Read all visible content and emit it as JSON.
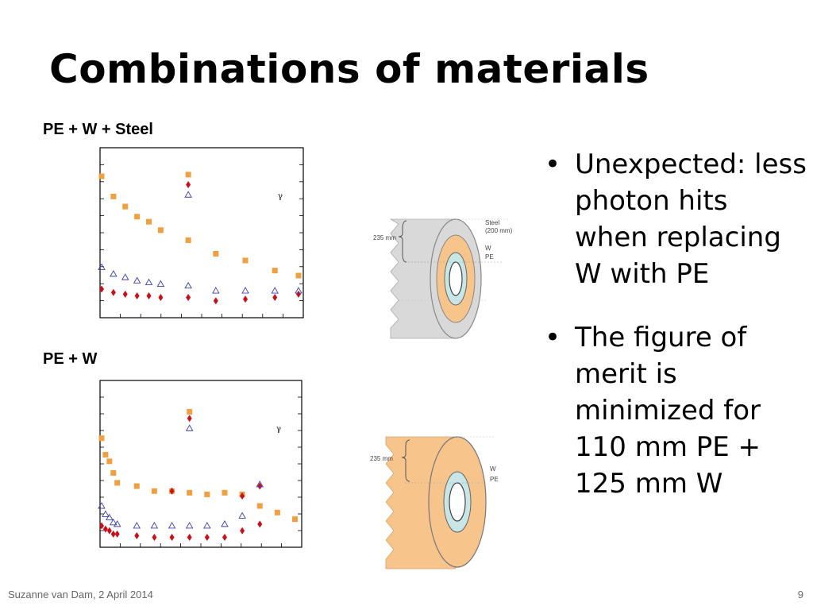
{
  "slide": {
    "title": "Combinations of materials",
    "footer_left": "Suzanne van Dam, 2 April 2014",
    "page_number": "9",
    "bullets": [
      "Unexpected: less photon hits when replacing W with PE",
      "The figure of merit is minimized for 110 mm PE + 125 mm W"
    ],
    "bullet_glyph": "•"
  },
  "diagrams": {
    "top": {
      "dimension": "235 mm",
      "labels": [
        "Steel",
        "(200 mm)",
        "W",
        "PE"
      ]
    },
    "bottom": {
      "dimension": "235 mm",
      "labels": [
        "W",
        "PE"
      ]
    }
  },
  "colors": {
    "orange": "#f0a040",
    "red": "#c8101a",
    "blue": "#3b3fb0",
    "steel": "#d9d9d9",
    "pe": "#f7c48c",
    "w_ring": "#c8e6e6"
  },
  "chart_data": [
    {
      "type": "scatter",
      "title": "PE + W + Steel",
      "annotation": "γ",
      "xlim": [
        0,
        10
      ],
      "ylim": [
        0,
        10
      ],
      "series": [
        {
          "marker": "square",
          "color": "#f0a040",
          "points": [
            [
              0,
              8.4
            ],
            [
              0.6,
              7.2
            ],
            [
              1.2,
              6.6
            ],
            [
              1.8,
              6.0
            ],
            [
              2.4,
              5.7
            ],
            [
              3.0,
              5.2
            ],
            [
              4.4,
              8.5
            ],
            [
              4.4,
              4.6
            ],
            [
              5.8,
              3.8
            ],
            [
              7.3,
              3.4
            ],
            [
              8.8,
              2.8
            ],
            [
              10.0,
              2.5
            ]
          ]
        },
        {
          "marker": "diamond",
          "color": "#c8101a",
          "points": [
            [
              0,
              1.7
            ],
            [
              0.6,
              1.5
            ],
            [
              1.2,
              1.4
            ],
            [
              1.8,
              1.3
            ],
            [
              2.4,
              1.3
            ],
            [
              3.0,
              1.2
            ],
            [
              4.4,
              7.9
            ],
            [
              4.4,
              1.2
            ],
            [
              5.8,
              1.0
            ],
            [
              7.3,
              1.1
            ],
            [
              8.8,
              1.2
            ],
            [
              10.0,
              1.4
            ]
          ]
        },
        {
          "marker": "triangle",
          "color": "#3b3fb0",
          "points": [
            [
              0,
              3.0
            ],
            [
              0.6,
              2.6
            ],
            [
              1.2,
              2.4
            ],
            [
              1.8,
              2.2
            ],
            [
              2.4,
              2.1
            ],
            [
              3.0,
              2.0
            ],
            [
              4.4,
              7.3
            ],
            [
              4.4,
              1.9
            ],
            [
              5.8,
              1.6
            ],
            [
              7.3,
              1.6
            ],
            [
              8.8,
              1.6
            ],
            [
              10.0,
              1.6
            ]
          ]
        }
      ]
    },
    {
      "type": "scatter",
      "title": "PE + W",
      "annotation": "γ",
      "xlim": [
        0,
        10
      ],
      "ylim": [
        0,
        10
      ],
      "series": [
        {
          "marker": "square",
          "color": "#f0a040",
          "points": [
            [
              0,
              6.6
            ],
            [
              0.2,
              5.6
            ],
            [
              0.4,
              5.2
            ],
            [
              0.6,
              4.5
            ],
            [
              0.8,
              3.9
            ],
            [
              1.8,
              3.7
            ],
            [
              2.7,
              3.4
            ],
            [
              3.6,
              3.4
            ],
            [
              4.5,
              8.2
            ],
            [
              4.5,
              3.3
            ],
            [
              5.4,
              3.2
            ],
            [
              6.3,
              3.3
            ],
            [
              7.2,
              3.2
            ],
            [
              8.1,
              2.5
            ],
            [
              9.0,
              2.1
            ],
            [
              9.9,
              1.7
            ]
          ]
        },
        {
          "marker": "diamond",
          "color": "#c8101a",
          "points": [
            [
              0,
              1.3
            ],
            [
              0.2,
              1.1
            ],
            [
              0.4,
              1.0
            ],
            [
              0.6,
              0.8
            ],
            [
              0.8,
              0.8
            ],
            [
              1.8,
              0.7
            ],
            [
              2.7,
              0.6
            ],
            [
              3.6,
              0.6
            ],
            [
              3.6,
              3.4
            ],
            [
              4.5,
              7.8
            ],
            [
              4.5,
              0.6
            ],
            [
              5.4,
              0.6
            ],
            [
              6.3,
              0.6
            ],
            [
              7.2,
              1.0
            ],
            [
              7.2,
              3.1
            ],
            [
              8.1,
              1.4
            ],
            [
              8.1,
              3.7
            ]
          ]
        },
        {
          "marker": "triangle",
          "color": "#3b3fb0",
          "points": [
            [
              0,
              2.5
            ],
            [
              0.2,
              2.0
            ],
            [
              0.4,
              1.8
            ],
            [
              0.6,
              1.5
            ],
            [
              0.8,
              1.4
            ],
            [
              1.8,
              1.3
            ],
            [
              2.7,
              1.3
            ],
            [
              3.6,
              1.3
            ],
            [
              4.5,
              7.2
            ],
            [
              4.5,
              1.3
            ],
            [
              5.4,
              1.3
            ],
            [
              6.3,
              1.4
            ],
            [
              7.2,
              1.9
            ],
            [
              8.1,
              3.8
            ]
          ]
        }
      ]
    }
  ]
}
